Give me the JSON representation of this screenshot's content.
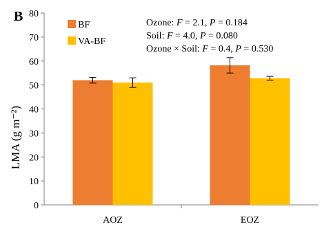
{
  "panel_label": "B",
  "chart_data": {
    "type": "bar",
    "categories": [
      "AOZ",
      "EOZ"
    ],
    "series": [
      {
        "name": "BF",
        "color": "#ED7D31",
        "values": [
          52.0,
          58.2
        ],
        "errors": [
          1.2,
          3.2
        ]
      },
      {
        "name": "VA-BF",
        "color": "#FFC000",
        "values": [
          51.0,
          52.8
        ],
        "errors": [
          2.0,
          0.8
        ]
      }
    ],
    "ylabel": "LMA (g m⁻²)",
    "xlabel": "",
    "ylim": [
      0,
      80
    ],
    "yticks": [
      0,
      10,
      20,
      30,
      40,
      50,
      60,
      70,
      80
    ],
    "tick_labels": [
      "0",
      "10",
      "20",
      "30",
      "40",
      "50",
      "60",
      "70",
      "80"
    ],
    "grid": false,
    "legend_position": "top-left",
    "annotations": [
      {
        "label": "Ozone: ",
        "F": "2.1",
        "P": "0.184"
      },
      {
        "label": "Soil: ",
        "F": "4.0",
        "P": "0.080"
      },
      {
        "label": "Ozone × Soil: ",
        "F": "0.4",
        "P": "0.530"
      }
    ]
  }
}
